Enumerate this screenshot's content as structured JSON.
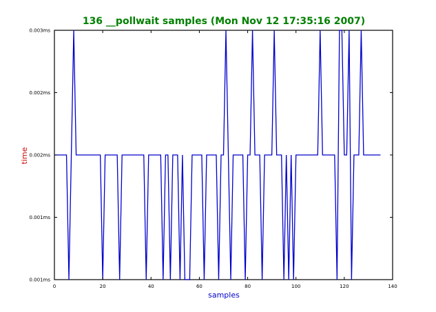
{
  "colors": {
    "title": "#008000",
    "xlabel": "#0000cc",
    "ylabel": "#cc0000",
    "series": "#0000cc",
    "frame": "#000000",
    "background": "#ffffff"
  },
  "chart_data": {
    "type": "line",
    "title": "136 __pollwait samples (Mon Nov 12 17:35:16 2007)",
    "xlabel": "samples",
    "ylabel": "time",
    "xlim": [
      0,
      140
    ],
    "ylim": [
      0.0008,
      0.0028
    ],
    "grid": false,
    "legend": "none",
    "x_ticks": [
      {
        "value": 0,
        "label": "0"
      },
      {
        "value": 20,
        "label": "20"
      },
      {
        "value": 40,
        "label": "40"
      },
      {
        "value": 60,
        "label": "60"
      },
      {
        "value": 80,
        "label": "80"
      },
      {
        "value": 100,
        "label": "100"
      },
      {
        "value": 120,
        "label": "120"
      },
      {
        "value": 140,
        "label": "140"
      }
    ],
    "y_ticks": [
      {
        "value": 0.0008,
        "label": "0.001ms"
      },
      {
        "value": 0.0013,
        "label": "0.001ms"
      },
      {
        "value": 0.0018,
        "label": "0.002ms"
      },
      {
        "value": 0.0023,
        "label": "0.002ms"
      },
      {
        "value": 0.0028,
        "label": "0.003ms"
      }
    ],
    "series": [
      {
        "values": [
          [
            0,
            0.0018
          ],
          [
            1,
            0.0018
          ],
          [
            2,
            0.0018
          ],
          [
            3,
            0.0018
          ],
          [
            4,
            0.0018
          ],
          [
            5,
            0.0018
          ],
          [
            6,
            0.0008
          ],
          [
            7,
            0.0018
          ],
          [
            8,
            0.0028
          ],
          [
            9,
            0.0018
          ],
          [
            10,
            0.0018
          ],
          [
            11,
            0.0018
          ],
          [
            12,
            0.0018
          ],
          [
            13,
            0.0018
          ],
          [
            14,
            0.0018
          ],
          [
            15,
            0.0018
          ],
          [
            16,
            0.0018
          ],
          [
            17,
            0.0018
          ],
          [
            18,
            0.0018
          ],
          [
            19,
            0.0018
          ],
          [
            20,
            0.0008
          ],
          [
            21,
            0.0018
          ],
          [
            22,
            0.0018
          ],
          [
            23,
            0.0018
          ],
          [
            24,
            0.0018
          ],
          [
            25,
            0.0018
          ],
          [
            26,
            0.0018
          ],
          [
            27,
            0.0008
          ],
          [
            28,
            0.0018
          ],
          [
            29,
            0.0018
          ],
          [
            30,
            0.0018
          ],
          [
            31,
            0.0018
          ],
          [
            32,
            0.0018
          ],
          [
            33,
            0.0018
          ],
          [
            34,
            0.0018
          ],
          [
            35,
            0.0018
          ],
          [
            36,
            0.0018
          ],
          [
            37,
            0.0018
          ],
          [
            38,
            0.0008
          ],
          [
            39,
            0.0018
          ],
          [
            40,
            0.0018
          ],
          [
            41,
            0.0018
          ],
          [
            42,
            0.0018
          ],
          [
            43,
            0.0018
          ],
          [
            44,
            0.0018
          ],
          [
            45,
            0.0008
          ],
          [
            46,
            0.0018
          ],
          [
            47,
            0.0018
          ],
          [
            48,
            0.0008
          ],
          [
            49,
            0.0018
          ],
          [
            50,
            0.0018
          ],
          [
            51,
            0.0018
          ],
          [
            52,
            0.0008
          ],
          [
            53,
            0.0018
          ],
          [
            54,
            0.0008
          ],
          [
            55,
            0.0008
          ],
          [
            56,
            0.0008
          ],
          [
            57,
            0.0018
          ],
          [
            58,
            0.0018
          ],
          [
            59,
            0.0018
          ],
          [
            60,
            0.0018
          ],
          [
            61,
            0.0018
          ],
          [
            62,
            0.0008
          ],
          [
            63,
            0.0018
          ],
          [
            64,
            0.0018
          ],
          [
            65,
            0.0018
          ],
          [
            66,
            0.0018
          ],
          [
            67,
            0.0018
          ],
          [
            68,
            0.0008
          ],
          [
            69,
            0.0018
          ],
          [
            70,
            0.0018
          ],
          [
            71,
            0.0028
          ],
          [
            72,
            0.0018
          ],
          [
            73,
            0.0008
          ],
          [
            74,
            0.0018
          ],
          [
            75,
            0.0018
          ],
          [
            76,
            0.0018
          ],
          [
            77,
            0.0018
          ],
          [
            78,
            0.0018
          ],
          [
            79,
            0.0008
          ],
          [
            80,
            0.0018
          ],
          [
            81,
            0.0018
          ],
          [
            82,
            0.0028
          ],
          [
            83,
            0.0018
          ],
          [
            84,
            0.0018
          ],
          [
            85,
            0.0018
          ],
          [
            86,
            0.0008
          ],
          [
            87,
            0.0018
          ],
          [
            88,
            0.0018
          ],
          [
            89,
            0.0018
          ],
          [
            90,
            0.0018
          ],
          [
            91,
            0.0028
          ],
          [
            92,
            0.0018
          ],
          [
            93,
            0.0018
          ],
          [
            94,
            0.0018
          ],
          [
            95,
            0.0008
          ],
          [
            96,
            0.0018
          ],
          [
            97,
            0.0008
          ],
          [
            98,
            0.0018
          ],
          [
            99,
            0.0008
          ],
          [
            100,
            0.0018
          ],
          [
            101,
            0.0018
          ],
          [
            102,
            0.0018
          ],
          [
            103,
            0.0018
          ],
          [
            104,
            0.0018
          ],
          [
            105,
            0.0018
          ],
          [
            106,
            0.0018
          ],
          [
            107,
            0.0018
          ],
          [
            108,
            0.0018
          ],
          [
            109,
            0.0018
          ],
          [
            110,
            0.0028
          ],
          [
            111,
            0.0018
          ],
          [
            112,
            0.0018
          ],
          [
            113,
            0.0018
          ],
          [
            114,
            0.0018
          ],
          [
            115,
            0.0018
          ],
          [
            116,
            0.0018
          ],
          [
            117,
            0.0008
          ],
          [
            118,
            0.0028
          ],
          [
            119,
            0.0028
          ],
          [
            120,
            0.0018
          ],
          [
            121,
            0.0018
          ],
          [
            122,
            0.0028
          ],
          [
            123,
            0.0008
          ],
          [
            124,
            0.0018
          ],
          [
            125,
            0.0018
          ],
          [
            126,
            0.0018
          ],
          [
            127,
            0.0028
          ],
          [
            128,
            0.0018
          ],
          [
            129,
            0.0018
          ],
          [
            130,
            0.0018
          ],
          [
            131,
            0.0018
          ],
          [
            132,
            0.0018
          ],
          [
            133,
            0.0018
          ],
          [
            134,
            0.0018
          ],
          [
            135,
            0.0018
          ]
        ]
      }
    ]
  }
}
